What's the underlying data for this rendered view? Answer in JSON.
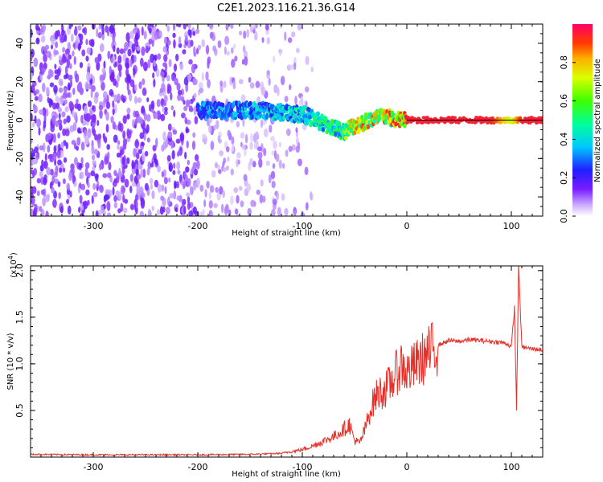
{
  "figure": {
    "title": "C2E1.2023.116.21.36.G14"
  },
  "colors": {
    "snr_line": "#e8302a",
    "zero_line": "#000000",
    "frame": "#000000"
  },
  "chart_data": [
    {
      "type": "heatmap",
      "title": "",
      "xlabel": "Height of straight line (km)",
      "ylabel": "Frequency (Hz)",
      "xlim": [
        -360,
        130
      ],
      "ylim": [
        -50,
        50
      ],
      "xticks": [
        -300,
        -200,
        -100,
        0,
        100
      ],
      "xtick_labels": [
        "-300",
        "-200",
        "-100",
        "0",
        "100"
      ],
      "yticks": [
        -40,
        -20,
        0,
        20,
        40
      ],
      "ytick_labels": [
        "-40",
        "-20",
        "0",
        "20",
        "40"
      ],
      "colormap": "rainbow",
      "colorbar": {
        "label": "Normalized spectral amplitude",
        "range": [
          0,
          1
        ],
        "ticks": [
          0.0,
          0.2,
          0.4,
          0.6,
          0.8
        ],
        "tick_labels": [
          "0.0",
          "0.2",
          "0.4",
          "0.6",
          "0.8"
        ]
      },
      "ridge": {
        "x": [
          -200,
          -180,
          -160,
          -140,
          -120,
          -100,
          -90,
          -80,
          -70,
          -60,
          -55,
          -50,
          -40,
          -30,
          -20,
          -10,
          0,
          20,
          50,
          80,
          100,
          110,
          130
        ],
        "frequency": [
          5,
          5,
          5,
          5,
          4,
          3,
          1,
          -2,
          -4,
          -6,
          -4,
          -3,
          -1,
          1,
          2,
          0,
          0,
          0,
          0,
          0,
          0,
          0,
          0
        ],
        "amplitude": [
          0.35,
          0.35,
          0.4,
          0.4,
          0.45,
          0.5,
          0.5,
          0.55,
          0.55,
          0.6,
          0.75,
          0.8,
          0.85,
          0.85,
          0.85,
          0.9,
          0.95,
          0.95,
          0.95,
          0.95,
          0.7,
          0.95,
          0.95
        ]
      },
      "noise_region_x": [
        -360,
        -110
      ],
      "zero_line_frequency": 0
    },
    {
      "type": "line",
      "title": "",
      "xlabel": "Height of straight line (km)",
      "ylabel": "SNR (10 * v/v)",
      "y_multiplier_label": "(x10",
      "y_multiplier_exp": "4",
      "y_multiplier_close": ")",
      "xlim": [
        -360,
        130
      ],
      "ylim": [
        0,
        20500
      ],
      "xticks": [
        -300,
        -200,
        -100,
        0,
        100
      ],
      "xtick_labels": [
        "-300",
        "-200",
        "-100",
        "0",
        "100"
      ],
      "yticks": [
        5000,
        10000,
        15000,
        20000
      ],
      "ytick_labels": [
        "0.5",
        "1.0",
        "1.5",
        "2.0"
      ],
      "series": [
        {
          "x": [
            -360,
            -300,
            -250,
            -200,
            -150,
            -120,
            -100,
            -90,
            -80,
            -70,
            -60,
            -55,
            -50,
            -45,
            -40,
            -35,
            -30,
            -25,
            -20,
            -15,
            -10,
            -5,
            0,
            10,
            20,
            30,
            40,
            50,
            60,
            70,
            80,
            90,
            95,
            100,
            103,
            105,
            107,
            110,
            120,
            130
          ],
          "values": [
            300,
            250,
            250,
            250,
            300,
            400,
            800,
            1200,
            1700,
            2200,
            3000,
            3500,
            1800,
            1500,
            3000,
            5000,
            6500,
            7000,
            7300,
            8000,
            9000,
            10000,
            9000,
            10000,
            11000,
            12000,
            12500,
            12400,
            12600,
            12500,
            12400,
            12300,
            12200,
            11800,
            16000,
            5000,
            20500,
            11800,
            11600,
            11500
          ]
        }
      ]
    }
  ]
}
